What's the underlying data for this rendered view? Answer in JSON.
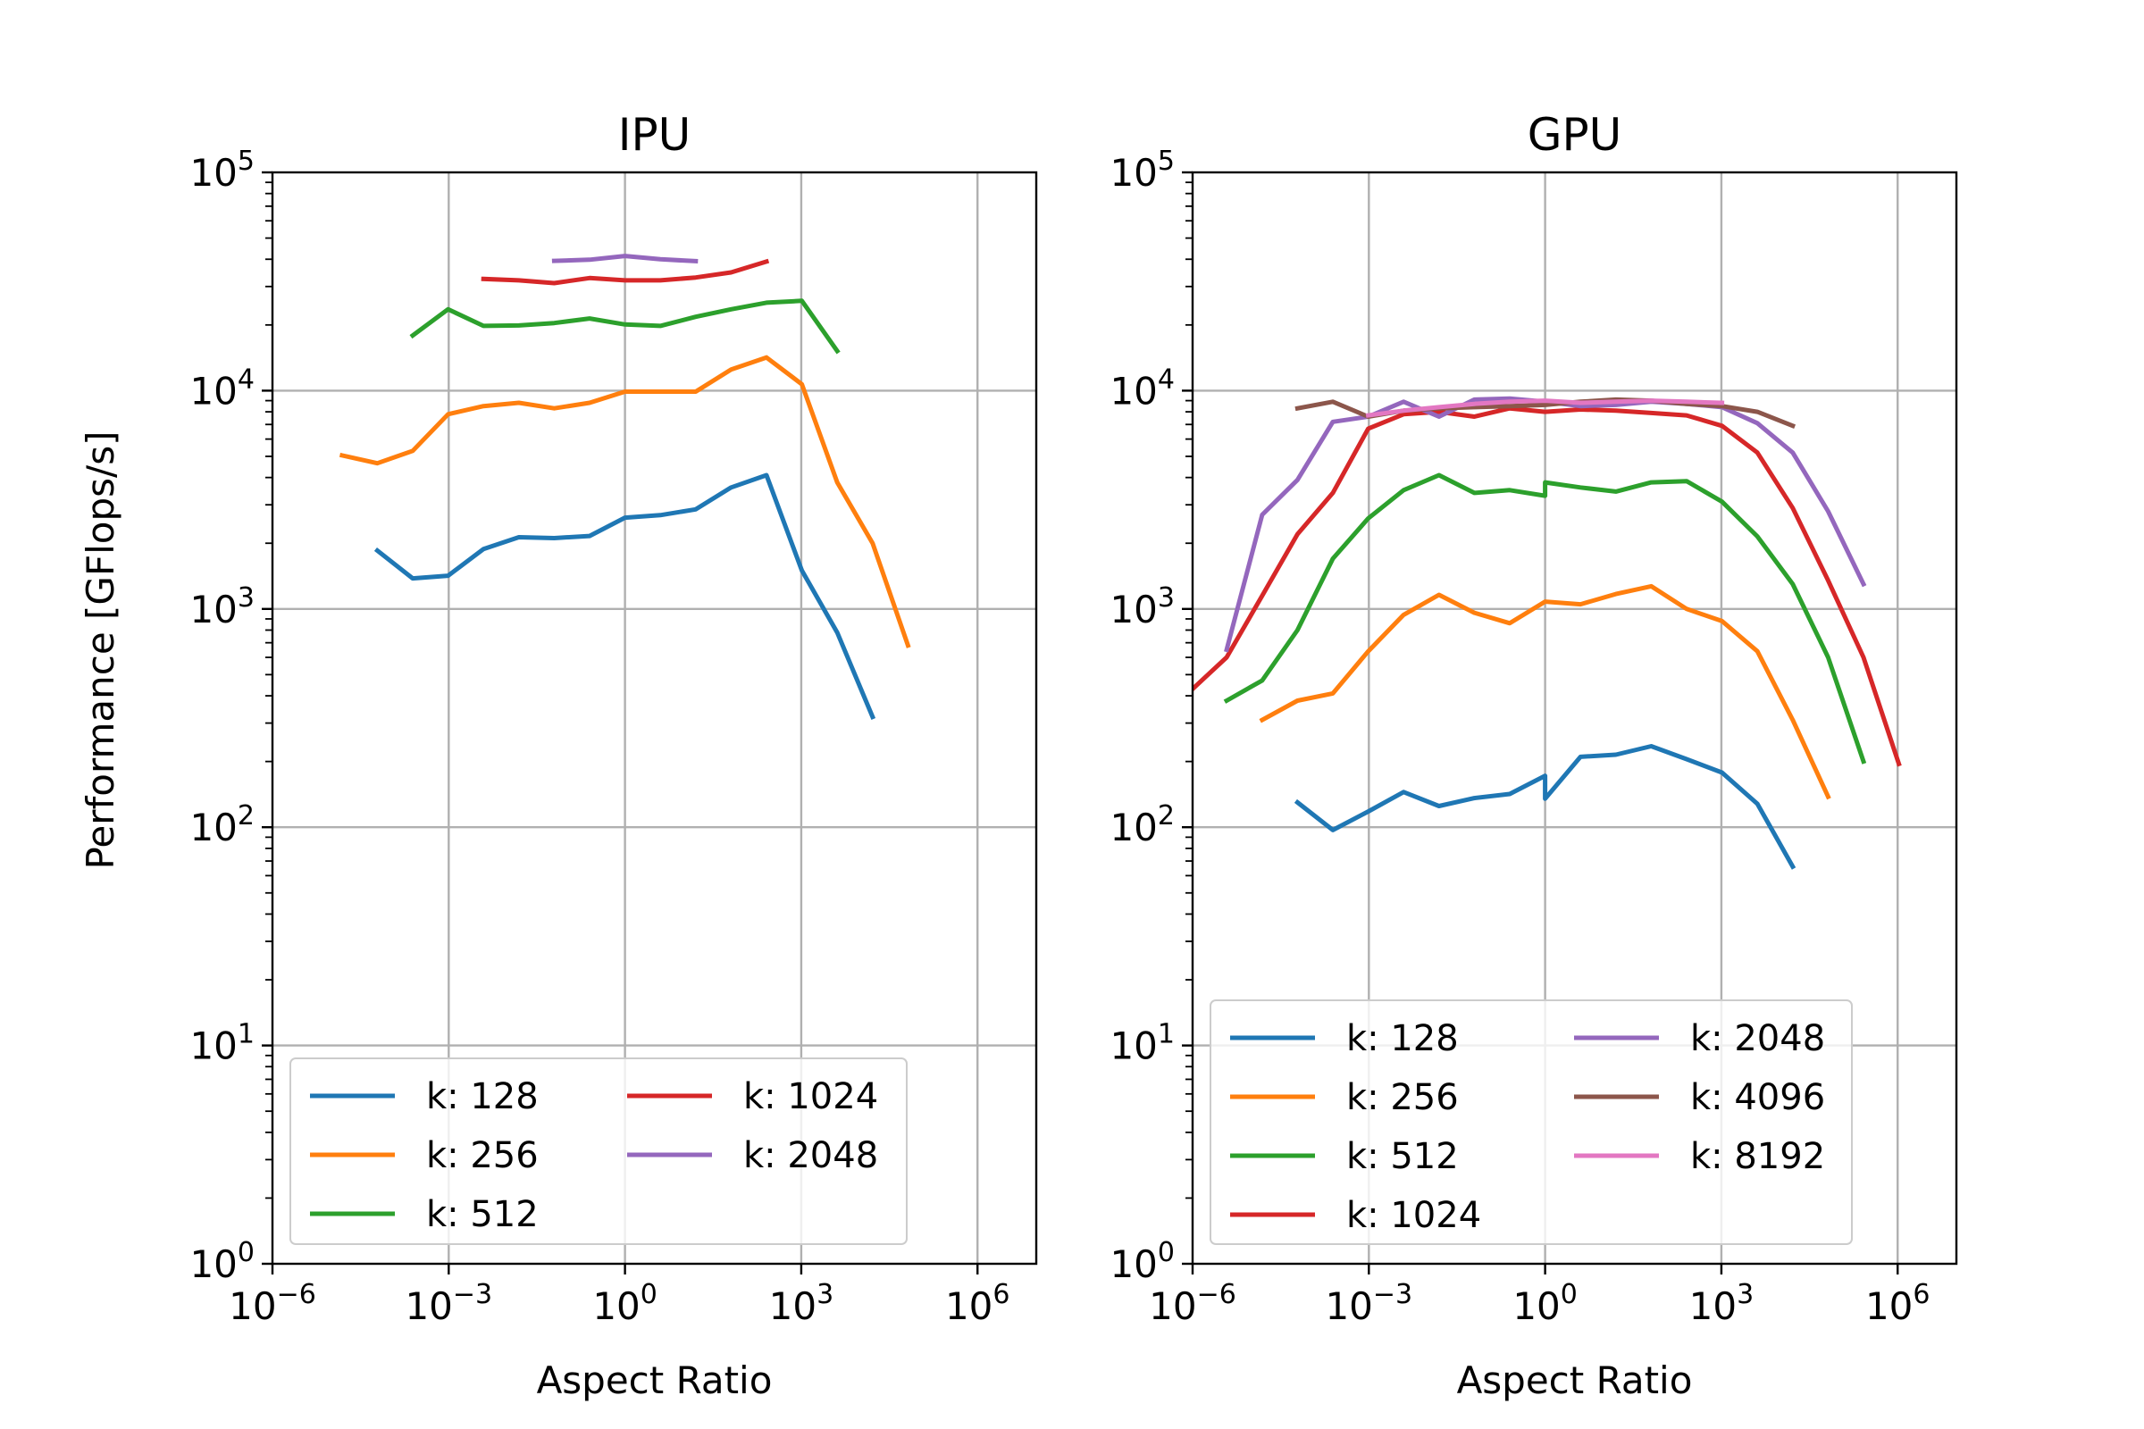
{
  "figure": {
    "ylabel": "Performance [GFlops/s]"
  },
  "chart_data": [
    {
      "type": "line",
      "title": "IPU",
      "xlabel": "Aspect Ratio",
      "ylabel": "Performance [GFlops/s]",
      "xscale": "log",
      "yscale": "log",
      "xlim": [
        1e-06,
        10000000.0
      ],
      "ylim": [
        1,
        100000
      ],
      "xticks": [
        {
          "value": 1e-06,
          "base": "10",
          "exp": "−6"
        },
        {
          "value": 0.001,
          "base": "10",
          "exp": "−3"
        },
        {
          "value": 1,
          "base": "10",
          "exp": "0"
        },
        {
          "value": 1000.0,
          "base": "10",
          "exp": "3"
        },
        {
          "value": 1000000.0,
          "base": "10",
          "exp": "6"
        }
      ],
      "yticks": [
        {
          "value": 1,
          "base": "10",
          "exp": "0"
        },
        {
          "value": 10,
          "base": "10",
          "exp": "1"
        },
        {
          "value": 100,
          "base": "10",
          "exp": "2"
        },
        {
          "value": 1000,
          "base": "10",
          "exp": "3"
        },
        {
          "value": 10000,
          "base": "10",
          "exp": "4"
        },
        {
          "value": 100000,
          "base": "10",
          "exp": "5"
        }
      ],
      "grid": true,
      "legend_position": "lower-right",
      "legend_columns": 2,
      "series": [
        {
          "name": "k: 128",
          "color": "#1f77b4",
          "x": [
            6.1e-05,
            0.000244,
            0.000977,
            0.0039,
            0.0156,
            0.0625,
            0.25,
            1,
            4,
            16,
            64,
            256,
            1024,
            4096,
            16384
          ],
          "y": [
            1850,
            1380,
            1420,
            1880,
            2130,
            2110,
            2160,
            2620,
            2690,
            2860,
            3600,
            4100,
            1500,
            780,
            320
          ]
        },
        {
          "name": "k: 256",
          "color": "#ff7f0e",
          "x": [
            1.53e-05,
            6.1e-05,
            0.000244,
            0.000977,
            0.0039,
            0.0156,
            0.0625,
            0.25,
            1,
            4,
            16,
            64,
            256,
            1024,
            4096,
            16384,
            65536
          ],
          "y": [
            5050,
            4650,
            5300,
            7800,
            8500,
            8800,
            8300,
            8800,
            9900,
            9900,
            9900,
            12500,
            14200,
            10700,
            3800,
            2000,
            680
          ]
        },
        {
          "name": "k: 512",
          "color": "#2ca02c",
          "x": [
            0.000244,
            0.000977,
            0.0039,
            0.0156,
            0.0625,
            0.25,
            1,
            4,
            16,
            64,
            256,
            1024,
            4096
          ],
          "y": [
            17900,
            23600,
            19800,
            19900,
            20400,
            21400,
            20100,
            19800,
            21800,
            23600,
            25300,
            25800,
            15200
          ]
        },
        {
          "name": "k: 1024",
          "color": "#d62728",
          "x": [
            0.0039,
            0.0156,
            0.0625,
            0.25,
            1,
            4,
            16,
            64,
            256
          ],
          "y": [
            32500,
            32000,
            31100,
            32800,
            32000,
            32000,
            33000,
            34800,
            39000
          ]
        },
        {
          "name": "k: 2048",
          "color": "#9467bd",
          "x": [
            0.0625,
            0.25,
            1,
            4,
            16
          ],
          "y": [
            39300,
            39800,
            41400,
            40000,
            39200
          ]
        }
      ]
    },
    {
      "type": "line",
      "title": "GPU",
      "xlabel": "Aspect Ratio",
      "xscale": "log",
      "yscale": "log",
      "xlim": [
        1e-06,
        10000000.0
      ],
      "ylim": [
        1,
        100000
      ],
      "xticks": [
        {
          "value": 1e-06,
          "base": "10",
          "exp": "−6"
        },
        {
          "value": 0.001,
          "base": "10",
          "exp": "−3"
        },
        {
          "value": 1,
          "base": "10",
          "exp": "0"
        },
        {
          "value": 1000.0,
          "base": "10",
          "exp": "3"
        },
        {
          "value": 1000000.0,
          "base": "10",
          "exp": "6"
        }
      ],
      "yticks": [
        {
          "value": 1,
          "base": "10",
          "exp": "0"
        },
        {
          "value": 10,
          "base": "10",
          "exp": "1"
        },
        {
          "value": 100,
          "base": "10",
          "exp": "2"
        },
        {
          "value": 1000,
          "base": "10",
          "exp": "3"
        },
        {
          "value": 10000,
          "base": "10",
          "exp": "4"
        },
        {
          "value": 100000,
          "base": "10",
          "exp": "5"
        }
      ],
      "grid": true,
      "legend_position": "lower-center",
      "legend_columns": 2,
      "series": [
        {
          "name": "k: 128",
          "color": "#1f77b4",
          "x": [
            6.1e-05,
            0.000244,
            0.000977,
            0.0039,
            0.0156,
            0.0625,
            0.25,
            1,
            1,
            4,
            16,
            64,
            256,
            1024,
            4096,
            16384
          ],
          "y": [
            130,
            97,
            118,
            145,
            125,
            136,
            142,
            172,
            135,
            210,
            215,
            235,
            205,
            178,
            128,
            66
          ]
        },
        {
          "name": "k: 256",
          "color": "#ff7f0e",
          "x": [
            1.53e-05,
            6.1e-05,
            0.000244,
            0.000977,
            0.0039,
            0.0156,
            0.0625,
            0.25,
            1,
            4,
            16,
            64,
            256,
            1024,
            4096,
            16384,
            65536
          ],
          "y": [
            310,
            380,
            410,
            640,
            940,
            1160,
            960,
            860,
            1080,
            1050,
            1170,
            1270,
            1000,
            880,
            640,
            310,
            138
          ]
        },
        {
          "name": "k: 512",
          "color": "#2ca02c",
          "x": [
            3.8e-06,
            1.53e-05,
            6.1e-05,
            0.000244,
            0.000977,
            0.0039,
            0.0156,
            0.0625,
            0.25,
            1,
            1,
            4,
            16,
            64,
            256,
            1024,
            4096,
            16384,
            65536,
            262144
          ],
          "y": [
            380,
            470,
            800,
            1700,
            2600,
            3500,
            4100,
            3400,
            3500,
            3300,
            3800,
            3600,
            3450,
            3800,
            3850,
            3100,
            2150,
            1300,
            600,
            200
          ]
        },
        {
          "name": "k: 1024",
          "color": "#d62728",
          "x": [
            1e-06,
            3.8e-06,
            1.53e-05,
            6.1e-05,
            0.000244,
            0.000977,
            0.0039,
            0.0156,
            0.0625,
            0.25,
            1,
            4,
            16,
            64,
            256,
            1024,
            4096,
            16384,
            65536,
            262144,
            1048576
          ],
          "y": [
            430,
            600,
            1150,
            2200,
            3400,
            6700,
            7800,
            8000,
            7600,
            8300,
            8000,
            8200,
            8100,
            7900,
            7700,
            6900,
            5200,
            2900,
            1350,
            600,
            195
          ]
        },
        {
          "name": "k: 2048",
          "color": "#9467bd",
          "x": [
            3.8e-06,
            1.53e-05,
            6.1e-05,
            0.000244,
            0.000977,
            0.0039,
            0.0156,
            0.0625,
            0.25,
            1,
            4,
            16,
            64,
            256,
            1024,
            4096,
            16384,
            65536,
            262144
          ],
          "y": [
            650,
            2700,
            3900,
            7200,
            7600,
            8900,
            7600,
            9100,
            9200,
            8900,
            8500,
            8600,
            8900,
            8700,
            8400,
            7100,
            5200,
            2800,
            1300
          ]
        },
        {
          "name": "k: 4096",
          "color": "#8c564b",
          "x": [
            6.1e-05,
            0.000244,
            0.000977,
            0.0039,
            0.0156,
            0.0625,
            0.25,
            1,
            4,
            16,
            64,
            256,
            1024,
            4096,
            16384
          ],
          "y": [
            8300,
            8900,
            7600,
            8100,
            8300,
            8400,
            8500,
            8600,
            8900,
            9100,
            9000,
            8700,
            8500,
            8000,
            6900
          ]
        },
        {
          "name": "k: 8192",
          "color": "#e377c2",
          "x": [
            0.000977,
            0.0039,
            0.0156,
            0.0625,
            0.25,
            1,
            4,
            16,
            64,
            256,
            1024
          ],
          "y": [
            7700,
            8100,
            8400,
            8700,
            8900,
            9000,
            8800,
            8900,
            9000,
            8900,
            8800
          ]
        }
      ]
    }
  ]
}
